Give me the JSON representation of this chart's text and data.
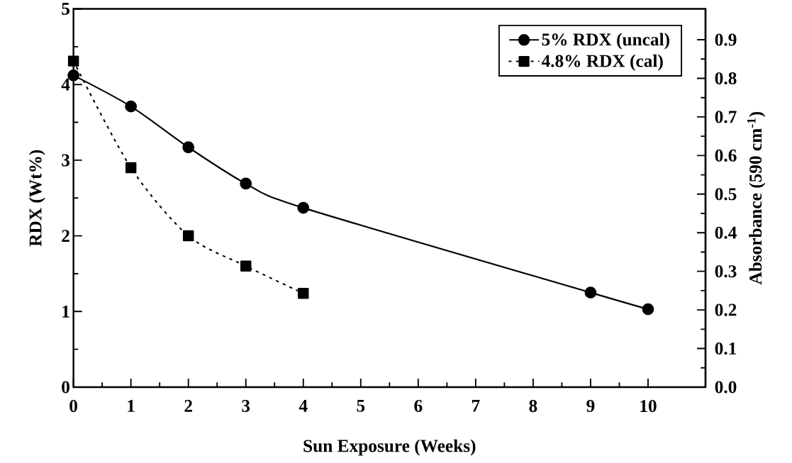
{
  "chart_data": {
    "type": "line",
    "xlabel": "Sun Exposure (Weeks)",
    "ylabel": "RDX (Wt%)",
    "y2label": "Absorbance (590 cm$^{-1}$)",
    "xlim": [
      0,
      11
    ],
    "xticks": [
      0,
      1,
      2,
      3,
      4,
      5,
      6,
      7,
      8,
      9,
      10
    ],
    "ylim": [
      0,
      5
    ],
    "yticks": [
      0,
      1,
      2,
      3,
      4,
      5
    ],
    "y2lim": [
      0,
      0.98
    ],
    "y2ticks": [
      {
        "value": 0,
        "label": "0.0"
      },
      0.1,
      0.2,
      0.3,
      0.4,
      0.5,
      0.6,
      0.7,
      0.8,
      0.9
    ],
    "legend": "top right",
    "series": [
      {
        "name": "5% RDX (uncal)",
        "color": "#000000",
        "marker": "circle",
        "line_style": "solid",
        "x": [
          0,
          1,
          2,
          3,
          4,
          9,
          10
        ],
        "values": [
          4.12,
          3.71,
          3.17,
          2.69,
          2.37,
          1.25,
          1.03
        ]
      },
      {
        "name": "4.8% RDX (cal)",
        "color": "#000000",
        "marker": "square",
        "line_style": "dotted",
        "x": [
          0,
          1,
          2,
          3,
          4
        ],
        "values": [
          4.31,
          2.9,
          2.0,
          1.6,
          1.24
        ]
      }
    ]
  }
}
